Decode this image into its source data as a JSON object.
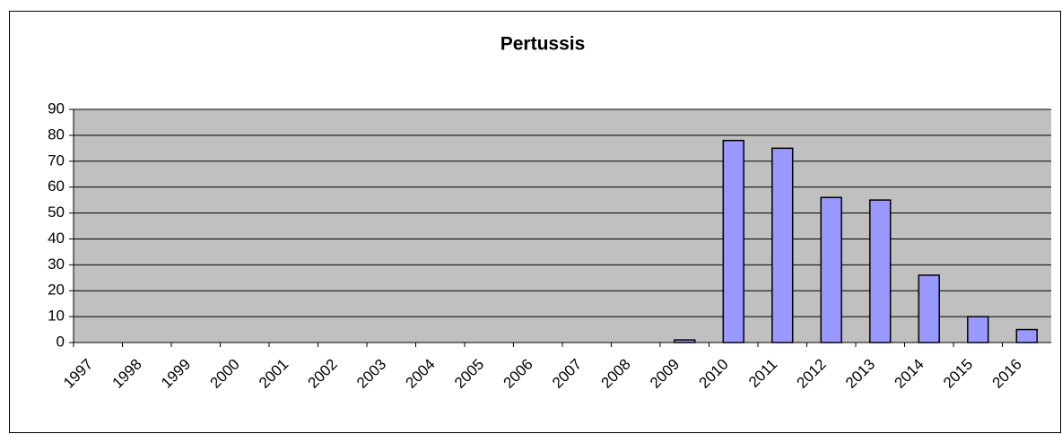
{
  "chart_data": {
    "type": "bar",
    "title": "Pertussis",
    "categories": [
      "1997",
      "1998",
      "1999",
      "2000",
      "2001",
      "2002",
      "2003",
      "2004",
      "2005",
      "2006",
      "2007",
      "2008",
      "2009",
      "2010",
      "2011",
      "2012",
      "2013",
      "2014",
      "2015",
      "2016"
    ],
    "values": [
      0,
      0,
      0,
      0,
      0,
      0,
      0,
      0,
      0,
      0,
      0,
      0,
      1,
      78,
      75,
      56,
      55,
      26,
      10,
      5
    ],
    "color": "#9999ff",
    "ylim": [
      0,
      90
    ],
    "yticks": [
      0,
      10,
      20,
      30,
      40,
      50,
      60,
      70,
      80,
      90
    ],
    "grid": true
  }
}
